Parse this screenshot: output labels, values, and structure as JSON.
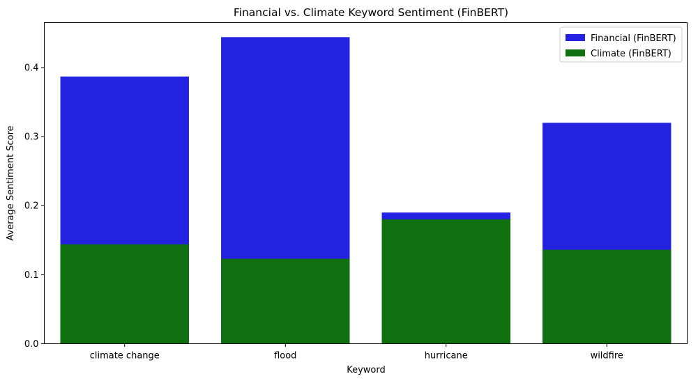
{
  "chart_data": {
    "type": "bar",
    "title": "Financial vs. Climate Keyword Sentiment (FinBERT)",
    "xlabel": "Keyword",
    "ylabel": "Average Sentiment Score",
    "categories": [
      "climate change",
      "flood",
      "hurricane",
      "wildfire"
    ],
    "ylim": [
      0,
      0.465
    ],
    "yticks": [
      0.0,
      0.1,
      0.2,
      0.3,
      0.4
    ],
    "ytick_labels": [
      "0.0",
      "0.1",
      "0.2",
      "0.3",
      "0.4"
    ],
    "grid": false,
    "legend_position": "top-right",
    "series": [
      {
        "name": "Financial (FinBERT)",
        "color": "#2222e0",
        "values": [
          0.387,
          0.444,
          0.19,
          0.32
        ]
      },
      {
        "name": "Climate (FinBERT)",
        "color": "#107010",
        "values": [
          0.144,
          0.123,
          0.18,
          0.136
        ]
      }
    ]
  }
}
